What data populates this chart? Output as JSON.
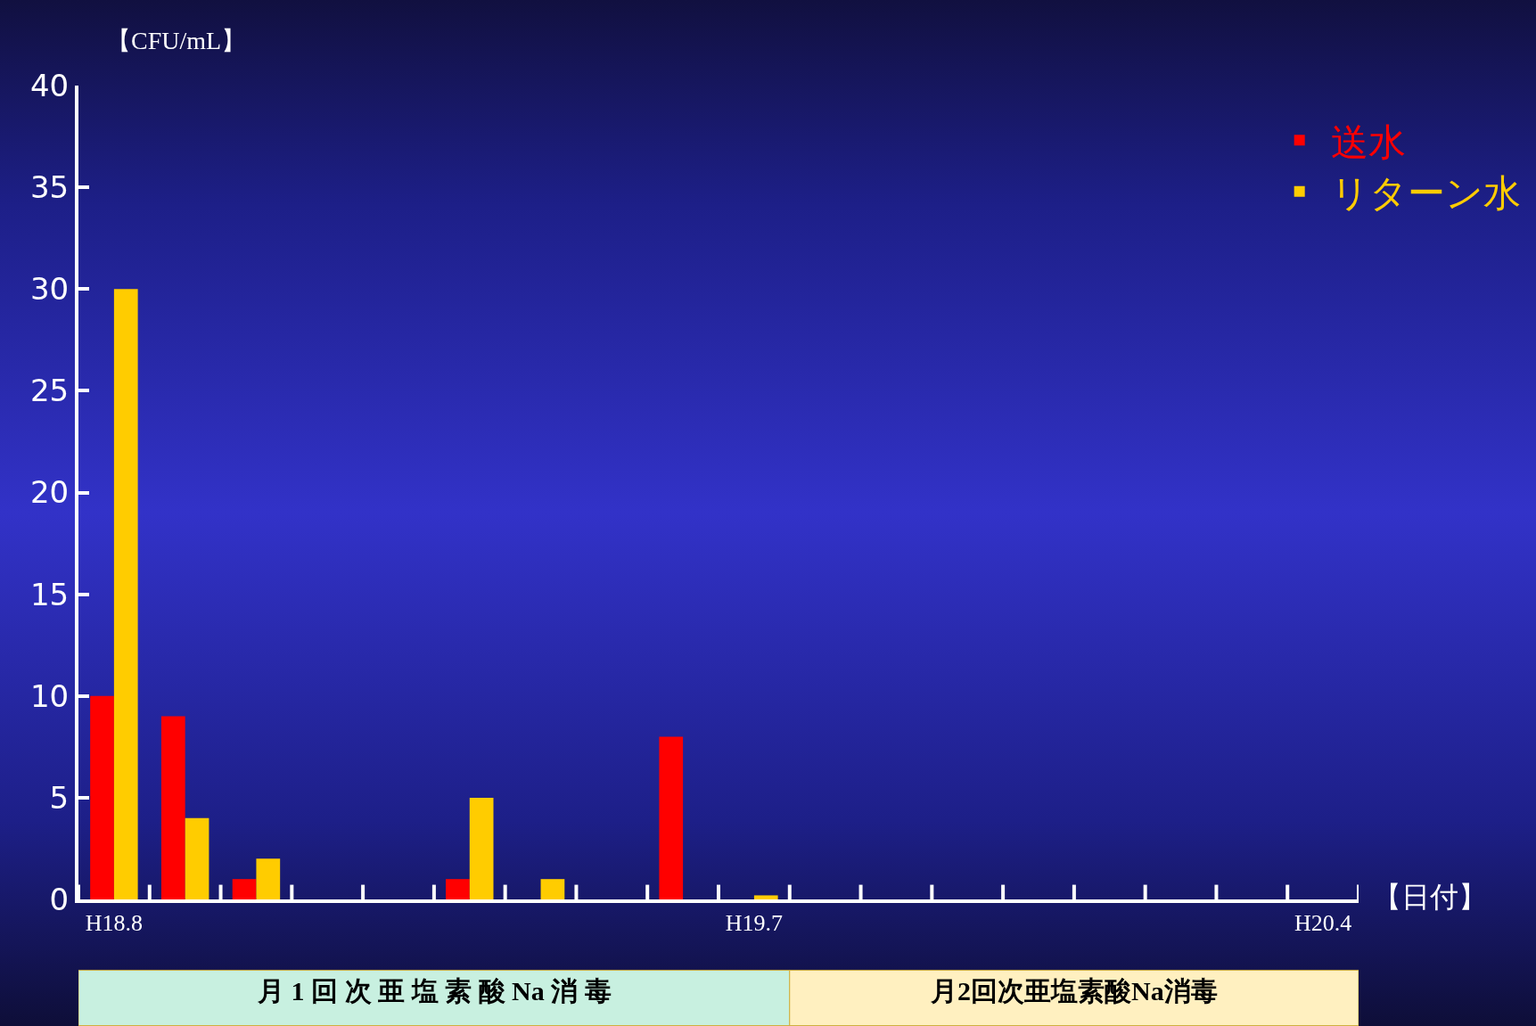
{
  "chart_data": {
    "type": "bar",
    "xlabel": "【日付】",
    "ylabel": "【CFU/mL】",
    "categories": [
      "H18.8",
      null,
      null,
      null,
      null,
      null,
      null,
      null,
      null,
      "H19.7",
      null,
      null,
      null,
      null,
      null,
      null,
      null,
      "H20.4"
    ],
    "series": [
      {
        "name": "送水",
        "color": "#ff0000",
        "values": [
          10,
          9,
          1,
          null,
          null,
          1,
          null,
          null,
          8,
          null,
          null,
          null,
          null,
          null,
          null,
          null,
          null,
          null
        ]
      },
      {
        "name": "リターン水",
        "color": "#ffcc00",
        "values": [
          30,
          4,
          2,
          null,
          null,
          5,
          1,
          null,
          null,
          0.2,
          null,
          null,
          null,
          null,
          null,
          null,
          null,
          null
        ]
      }
    ],
    "ylim": [
      0,
      40
    ],
    "yticks": [
      0,
      5,
      10,
      15,
      20,
      25,
      30,
      35,
      40
    ],
    "grid": false,
    "legend": "top right",
    "annotations": [
      "月 1 回 次 亜 塩 素 酸 Na 消 毒",
      "月2回次亜塩素酸Na消毒"
    ]
  }
}
